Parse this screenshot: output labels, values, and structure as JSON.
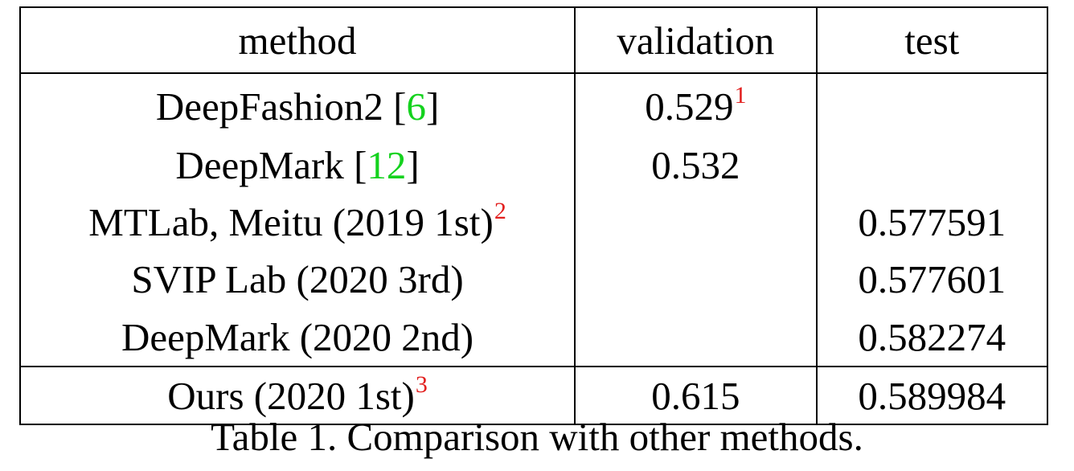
{
  "table": {
    "columns": [
      "method",
      "validation",
      "test"
    ],
    "rows": [
      {
        "method": "DeepFashion2 [",
        "cite": "6",
        "method_end": "]",
        "method_sup": "",
        "validation": "0.529",
        "validation_sup": "1",
        "test": ""
      },
      {
        "method": "DeepMark [",
        "cite": "12",
        "method_end": "]",
        "method_sup": "",
        "validation": "0.532",
        "validation_sup": "",
        "test": ""
      },
      {
        "method": "MTLab, Meitu (2019 1st)",
        "cite": "",
        "method_end": "",
        "method_sup": "2",
        "validation": "",
        "validation_sup": "",
        "test": "0.577591"
      },
      {
        "method": "SVIP Lab (2020 3rd)",
        "cite": "",
        "method_end": "",
        "method_sup": "",
        "validation": "",
        "validation_sup": "",
        "test": "0.577601"
      },
      {
        "method": "DeepMark (2020 2nd)",
        "cite": "",
        "method_end": "",
        "method_sup": "",
        "validation": "",
        "validation_sup": "",
        "test": "0.582274"
      },
      {
        "method": "Ours (2020 1st)",
        "cite": "",
        "method_end": "",
        "method_sup": "3",
        "validation": "0.615",
        "validation_sup": "",
        "test": "0.589984"
      }
    ]
  },
  "caption": "Table 1. Comparison with other methods.",
  "colors": {
    "citation": "#14d21e",
    "footnote": "#e2201f",
    "text": "#000000",
    "rule": "#000000"
  }
}
